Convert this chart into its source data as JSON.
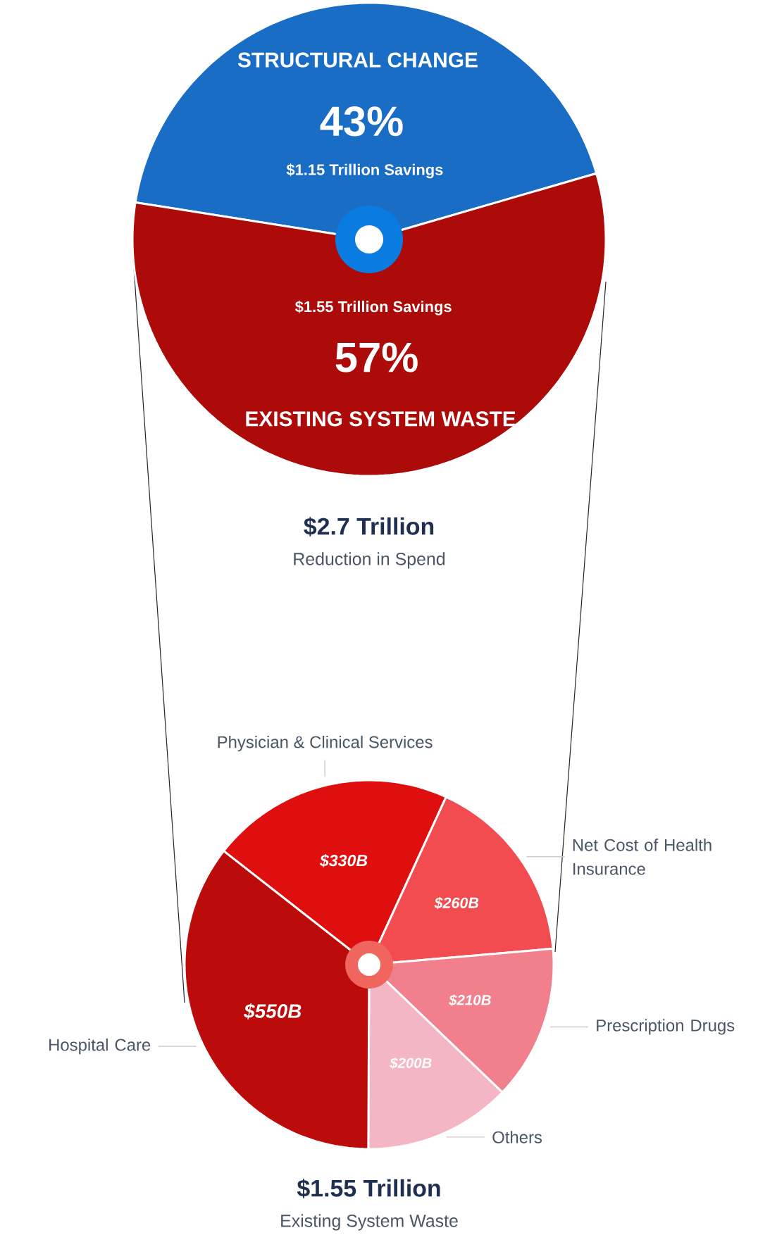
{
  "chart_data": [
    {
      "type": "pie",
      "title": "$2.7 Trillion",
      "subtitle": "Reduction in Spend",
      "categories": [
        "STRUCTURAL CHANGE",
        "EXISTING SYSTEM WASTE"
      ],
      "values": [
        43,
        57
      ],
      "colors": [
        "#1a6dc4",
        "#ad0a0a"
      ],
      "value_labels": [
        "43%",
        "57%"
      ],
      "annotations": [
        "$1.15 Trillion Savings",
        "$1.55 Trillion Savings"
      ]
    },
    {
      "type": "pie",
      "title": "$1.55 Trillion",
      "subtitle": "Existing System Waste",
      "categories": [
        "Physician & Clinical Services",
        "Net Cost of Health Insurance",
        "Prescription Drugs",
        "Others",
        "Hospital Care"
      ],
      "values": [
        330,
        260,
        210,
        200,
        550
      ],
      "colors": [
        "#e00f0f",
        "#f24c50",
        "#f27f8c",
        "#f4b5c4",
        "#bc0b0b"
      ],
      "value_labels": [
        "$330B",
        "$260B",
        "$210B",
        "$200B",
        "$550B"
      ]
    }
  ]
}
